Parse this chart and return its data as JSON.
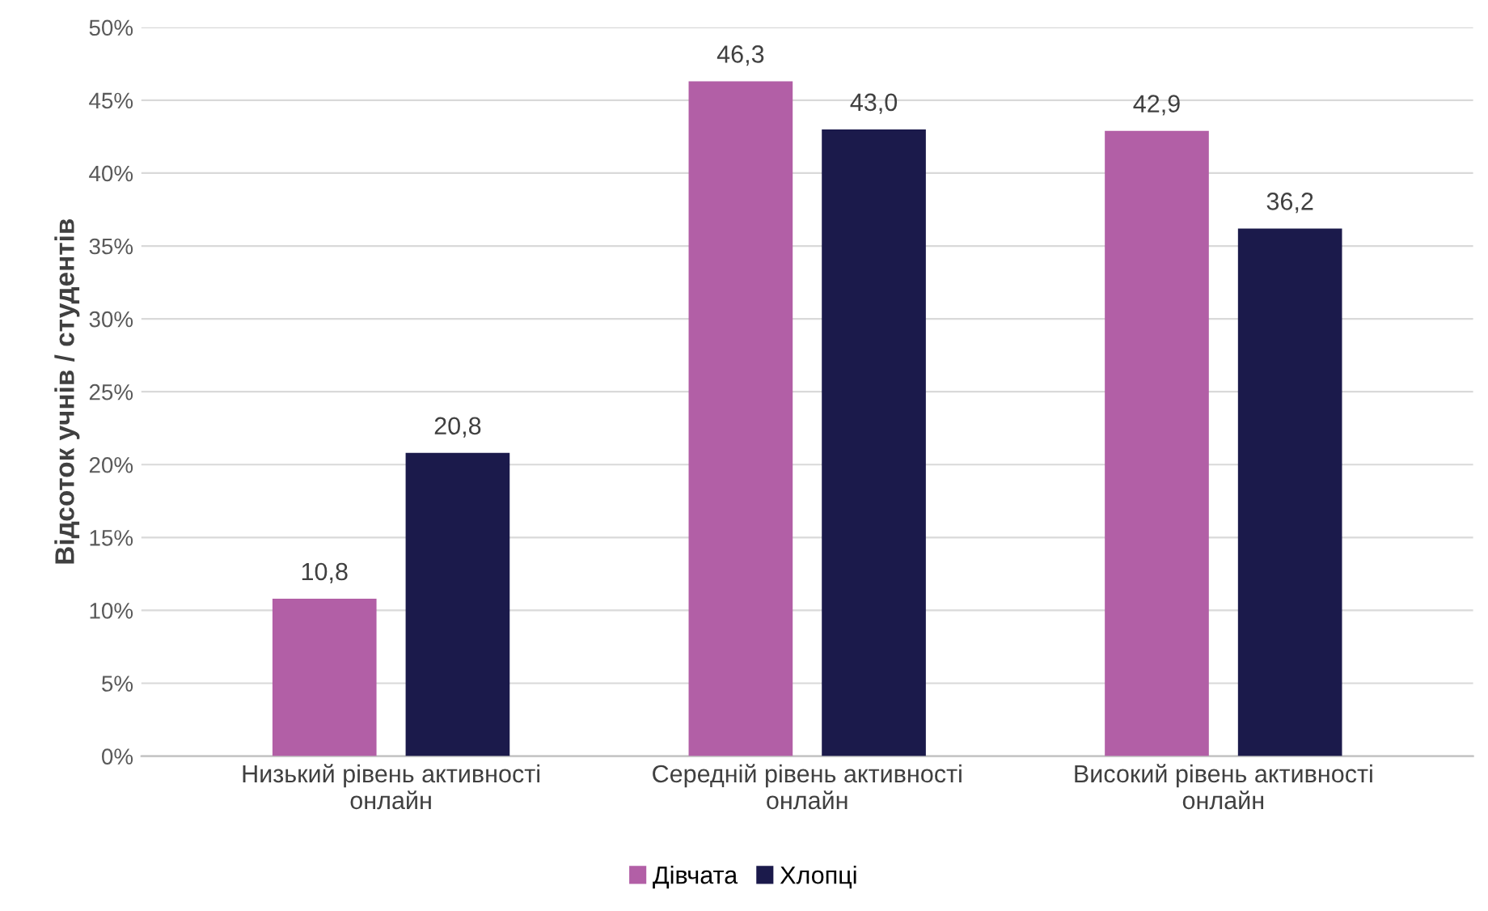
{
  "chart_data": {
    "type": "bar",
    "ylabel": "Відсоток учнів / студентів",
    "categories": [
      "Низький рівень активності\nонлайн",
      "Середній рівень активності\nонлайн",
      "Високий рівень активності\nонлайн"
    ],
    "series": [
      {
        "name": "Дівчата",
        "color": "#b25fa6",
        "values": [
          10.8,
          46.3,
          42.9
        ],
        "value_labels": [
          "10,8",
          "46,3",
          "42,9"
        ]
      },
      {
        "name": "Хлопці",
        "color": "#1b1a4b",
        "values": [
          20.8,
          43.0,
          36.2
        ],
        "value_labels": [
          "20,8",
          "43,0",
          "36,2"
        ]
      }
    ],
    "ylim": [
      0,
      50
    ],
    "yticks": [
      {
        "value": 0,
        "label": "0%"
      },
      {
        "value": 5,
        "label": "5%"
      },
      {
        "value": 10,
        "label": "10%"
      },
      {
        "value": 15,
        "label": "15%"
      },
      {
        "value": 20,
        "label": "20%"
      },
      {
        "value": 25,
        "label": "25%"
      },
      {
        "value": 30,
        "label": "30%"
      },
      {
        "value": 35,
        "label": "35%"
      },
      {
        "value": 40,
        "label": "40%"
      },
      {
        "value": 45,
        "label": "45%"
      },
      {
        "value": 50,
        "label": "50%"
      }
    ],
    "grid": "y",
    "legend": "bottom"
  }
}
